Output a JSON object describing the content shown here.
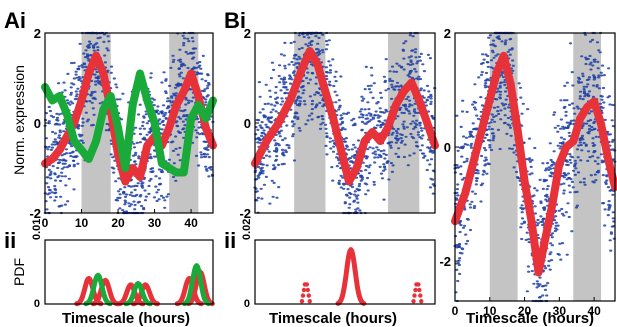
{
  "colors": {
    "red": "#e8323a",
    "green": "#1aaa3a",
    "blue_points": "#1f3fa6",
    "night_band": "#c4c4c4",
    "axis": "#000000"
  },
  "panel_labels": {
    "Ai": "Ai",
    "Bi": "Bi",
    "Aii": "ii",
    "Bii": "ii"
  },
  "chart_data": [
    {
      "id": "Ai",
      "type": "scatter",
      "ylabel": "Norm. expression",
      "xlim": [
        0,
        46
      ],
      "ylim": [
        -2,
        2
      ],
      "x_ticks": [
        0,
        10,
        20,
        30,
        40
      ],
      "y_ticks": [
        -2,
        0,
        2
      ],
      "shaded_intervals_hours": [
        [
          10,
          18
        ],
        [
          34,
          42
        ]
      ],
      "scatter_cloud": {
        "name": "",
        "color": "#1f3fa6",
        "x_range": [
          0,
          46
        ],
        "upper_envelope_max": 2.0,
        "lower_envelope_min": -2.0
      },
      "series": [
        {
          "name": "",
          "color": "#e8323a",
          "style": "thick-line",
          "x": [
            0,
            2,
            4,
            6,
            8,
            10,
            12,
            14,
            16,
            18,
            20,
            22,
            24,
            26,
            28,
            30,
            32,
            34,
            36,
            38,
            40,
            42,
            44,
            46
          ],
          "y": [
            -0.9,
            -0.8,
            -0.6,
            -0.3,
            0.0,
            0.5,
            1.1,
            1.5,
            1.1,
            0.3,
            -0.7,
            -1.3,
            -1.0,
            -1.2,
            -0.5,
            -0.3,
            -0.5,
            -0.1,
            0.4,
            0.7,
            1.1,
            0.6,
            -0.1,
            -0.5
          ]
        },
        {
          "name": "",
          "color": "#1aaa3a",
          "style": "thick-line",
          "x": [
            0,
            2,
            4,
            6,
            8,
            10,
            12,
            14,
            16,
            18,
            20,
            22,
            24,
            26,
            28,
            30,
            32,
            34,
            36,
            38,
            40,
            42,
            44,
            46
          ],
          "y": [
            0.8,
            0.5,
            0.6,
            0.2,
            -0.4,
            -0.6,
            -0.8,
            -0.4,
            0.3,
            0.6,
            -0.1,
            -1.0,
            0.4,
            1.1,
            0.5,
            0.0,
            -0.9,
            -1.0,
            -1.1,
            -1.1,
            0.1,
            0.4,
            0.1,
            0.5
          ]
        }
      ]
    },
    {
      "id": "Aii",
      "type": "line",
      "ylabel": "PDF",
      "xlabel": "Timescale (hours)",
      "xlim": [
        0,
        46
      ],
      "ylim": [
        0,
        0.01
      ],
      "y_ticks": [
        0,
        0.01
      ],
      "y_tick_labels": [
        "0",
        "0.01"
      ],
      "series": [
        {
          "name": "",
          "color": "#e8323a",
          "peaks": [
            [
              12,
              0.004
            ],
            [
              16.5,
              0.0037
            ],
            [
              23.5,
              0.003
            ],
            [
              27.5,
              0.003
            ],
            [
              39.5,
              0.004
            ],
            [
              42.5,
              0.005
            ]
          ]
        },
        {
          "name": "",
          "color": "#1aaa3a",
          "peaks": [
            [
              14.5,
              0.0045
            ],
            [
              25.5,
              0.0032
            ],
            [
              41.5,
              0.006
            ]
          ]
        }
      ]
    },
    {
      "id": "Bi",
      "type": "scatter",
      "xlim": [
        0,
        46
      ],
      "ylim": [
        -2,
        2
      ],
      "y_ticks": [
        -2,
        0,
        2
      ],
      "shaded_intervals_hours": [
        [
          10,
          18
        ],
        [
          34,
          42
        ]
      ],
      "scatter_cloud": {
        "name": "",
        "color": "#1f3fa6",
        "x_range": [
          0,
          46
        ],
        "upper_envelope_max": 2.0,
        "lower_envelope_min": -2.0
      },
      "series": [
        {
          "name": "",
          "color": "#e8323a",
          "style": "thick-line",
          "x": [
            0,
            3,
            6,
            9,
            12,
            14,
            16,
            18,
            20,
            22,
            24,
            26,
            28,
            30,
            32,
            34,
            36,
            38,
            40,
            42,
            44,
            46
          ],
          "y": [
            -0.9,
            -0.4,
            0.0,
            0.5,
            1.2,
            1.6,
            1.3,
            0.7,
            0.1,
            -0.6,
            -1.3,
            -1.0,
            -0.4,
            -0.2,
            -0.4,
            -0.1,
            0.4,
            0.7,
            0.9,
            0.5,
            0.0,
            -0.5
          ]
        }
      ]
    },
    {
      "id": "Bii",
      "type": "line",
      "xlabel": "Timescale (hours)",
      "xlim": [
        0,
        46
      ],
      "ylim": [
        0,
        0.02
      ],
      "y_ticks": [
        0,
        0.02
      ],
      "y_tick_labels": [
        "0",
        "0.02"
      ],
      "series": [
        {
          "name": "",
          "color": "#e8323a",
          "style": "solid",
          "peaks": [
            [
              24.5,
              0.017
            ]
          ]
        },
        {
          "name": "",
          "color": "#e8323a",
          "style": "dotted",
          "peaks": [
            [
              13,
              0.007
            ],
            [
              41.5,
              0.007
            ]
          ]
        }
      ]
    },
    {
      "id": "B-right",
      "type": "scatter",
      "xlabel": "Timescale (hours)",
      "xlim": [
        0,
        46
      ],
      "ylim": [
        -2.7,
        2.0
      ],
      "x_ticks": [
        0,
        10,
        20,
        30,
        40
      ],
      "y_ticks": [
        -2,
        0,
        2
      ],
      "shaded_intervals_hours": [
        [
          10,
          18
        ],
        [
          34,
          42
        ]
      ],
      "scatter_cloud": {
        "name": "",
        "color": "#1f3fa6",
        "x_range": [
          0,
          46
        ],
        "upper_envelope_max": 2.0,
        "lower_envelope_min": -2.7
      },
      "series": [
        {
          "name": "",
          "color": "#e8323a",
          "style": "thick-line",
          "x": [
            0,
            3,
            6,
            9,
            12,
            14,
            16,
            18,
            20,
            22,
            24,
            26,
            28,
            30,
            32,
            34,
            36,
            38,
            40,
            42,
            44,
            46
          ],
          "y": [
            -1.3,
            -0.8,
            -0.1,
            0.6,
            1.3,
            1.6,
            1.1,
            0.3,
            -0.6,
            -1.3,
            -2.2,
            -1.6,
            -1.0,
            -0.3,
            0.0,
            0.1,
            0.5,
            0.7,
            0.8,
            0.4,
            -0.2,
            -0.7
          ]
        }
      ]
    }
  ]
}
